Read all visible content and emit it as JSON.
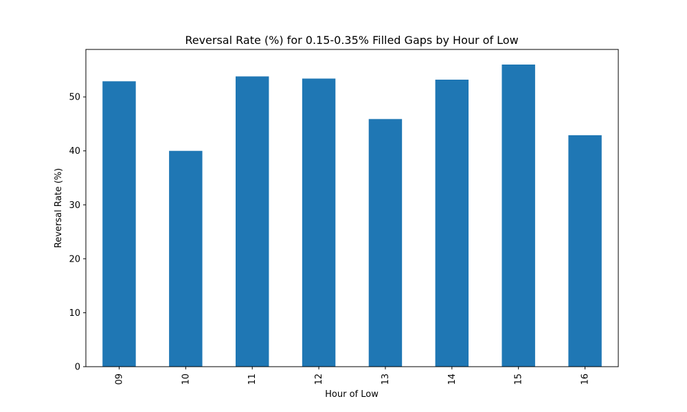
{
  "chart_data": {
    "type": "bar",
    "title": "Reversal Rate (%) for 0.15-0.35% Filled Gaps by Hour of Low",
    "xlabel": "Hour of Low",
    "ylabel": "Reversal Rate (%)",
    "categories": [
      "09",
      "10",
      "11",
      "12",
      "13",
      "14",
      "15",
      "16"
    ],
    "values": [
      52.9,
      40.0,
      53.8,
      53.4,
      45.9,
      53.2,
      56.0,
      42.9
    ],
    "ylim": [
      0,
      58.8
    ],
    "yticks": [
      0,
      10,
      20,
      30,
      40,
      50
    ],
    "ytick_labels": [
      "0",
      "10",
      "20",
      "30",
      "40",
      "50"
    ],
    "bar_color": "#1f77b4",
    "grid": false,
    "legend": null
  }
}
